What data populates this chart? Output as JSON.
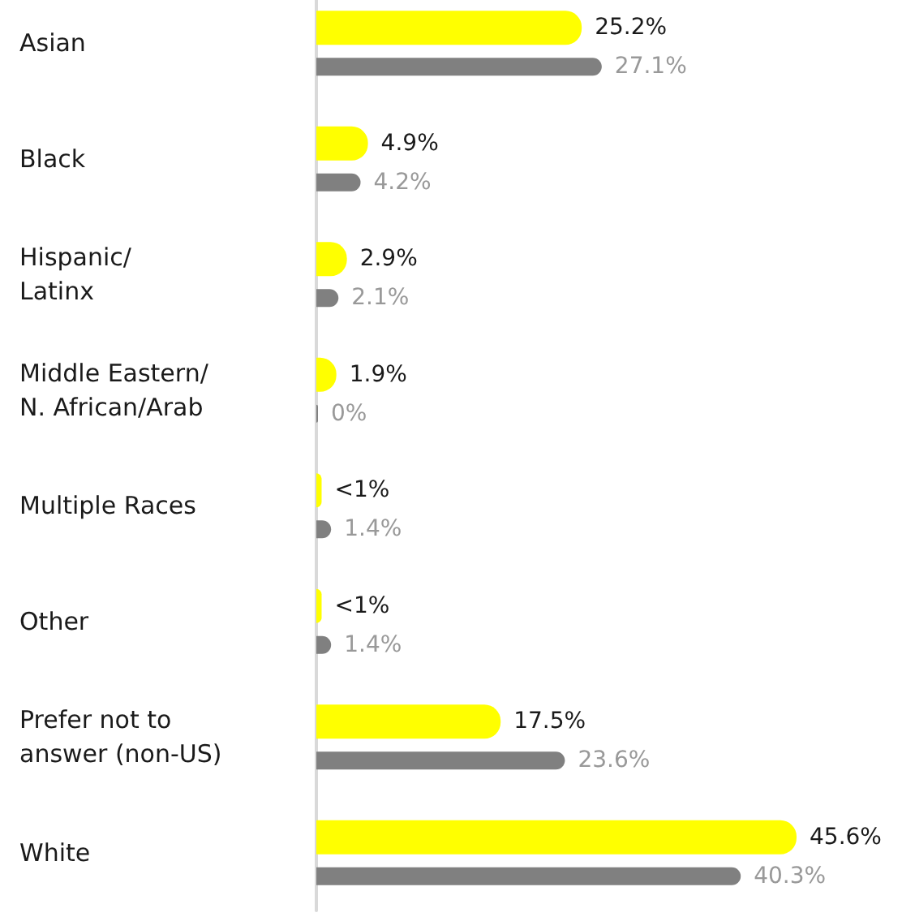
{
  "chart_data": {
    "type": "bar",
    "orientation": "horizontal",
    "categories": [
      "Asian",
      "Black",
      "Hispanic/\nLatinx",
      "Middle Eastern/\nN. African/Arab",
      "Multiple Races",
      "Other",
      "Prefer not to\nanswer (non-US)",
      "White"
    ],
    "series": [
      {
        "color": "#ffff00",
        "values": [
          25.2,
          4.9,
          2.9,
          1.9,
          0.5,
          0.5,
          17.5,
          45.6
        ],
        "value_labels": [
          "25.2%",
          "4.9%",
          "2.9%",
          "1.9%",
          "<1%",
          "<1%",
          "17.5%",
          "45.6%"
        ]
      },
      {
        "color": "#808080",
        "values": [
          27.1,
          4.2,
          2.1,
          0,
          1.4,
          1.4,
          23.6,
          40.3
        ],
        "value_labels": [
          "27.1%",
          "4.2%",
          "2.1%",
          "0%",
          "1.4%",
          "1.4%",
          "23.6%",
          "40.3%"
        ]
      }
    ],
    "tick_labels": "y",
    "grid": false
  }
}
